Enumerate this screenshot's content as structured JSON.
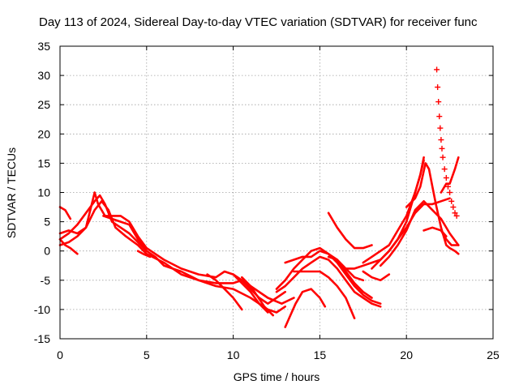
{
  "chart_data": {
    "type": "scatter",
    "title": "Day 113 of 2024, Sidereal Day-to-day VTEC variation (SDTVAR) for receiver func",
    "xlabel": "GPS time / hours",
    "ylabel": "SDTVAR / TECUs",
    "xlim": [
      0,
      25
    ],
    "ylim": [
      -15,
      35
    ],
    "xticks": [
      0,
      5,
      10,
      15,
      20,
      25
    ],
    "yticks": [
      -15,
      -10,
      -5,
      0,
      5,
      10,
      15,
      20,
      25,
      30,
      35
    ],
    "grid": true,
    "color": "#ff0000",
    "series": [
      {
        "name": "arc-1",
        "points": [
          [
            0,
            2
          ],
          [
            0.5,
            3
          ],
          [
            1,
            4.5
          ],
          [
            1.5,
            6.5
          ],
          [
            2,
            8.5
          ],
          [
            2.3,
            9.5
          ],
          [
            2.6,
            8
          ],
          [
            3,
            5
          ],
          [
            3.5,
            4
          ],
          [
            4,
            3
          ],
          [
            4.5,
            1.5
          ],
          [
            5,
            0
          ],
          [
            5.5,
            -1
          ],
          [
            6,
            -2.5
          ],
          [
            7,
            -3.5
          ],
          [
            8,
            -5
          ],
          [
            9,
            -5.5
          ],
          [
            10,
            -5.5
          ],
          [
            10.5,
            -5
          ],
          [
            11,
            -6.5
          ],
          [
            11.5,
            -8
          ],
          [
            12,
            -9
          ],
          [
            12.5,
            -8
          ],
          [
            13,
            -7
          ]
        ]
      },
      {
        "name": "arc-2",
        "points": [
          [
            0,
            1
          ],
          [
            0.5,
            1.5
          ],
          [
            1,
            2.5
          ],
          [
            1.5,
            4
          ],
          [
            2,
            7
          ],
          [
            2.4,
            8.5
          ],
          [
            2.8,
            7
          ],
          [
            3.2,
            4
          ],
          [
            3.8,
            2.5
          ],
          [
            4.5,
            1
          ],
          [
            5,
            -0.5
          ],
          [
            6,
            -2
          ],
          [
            7,
            -4
          ],
          [
            8,
            -5
          ],
          [
            9,
            -6
          ],
          [
            10,
            -6.5
          ],
          [
            11,
            -8
          ],
          [
            12,
            -10
          ],
          [
            12.5,
            -10.5
          ],
          [
            13,
            -9.5
          ]
        ]
      },
      {
        "name": "arc-3",
        "points": [
          [
            0,
            3
          ],
          [
            0.5,
            3.5
          ],
          [
            1,
            3
          ],
          [
            1.5,
            4
          ],
          [
            2,
            10
          ],
          [
            2.2,
            8
          ],
          [
            2.6,
            6
          ],
          [
            3,
            6
          ],
          [
            3.5,
            6
          ],
          [
            4,
            5
          ],
          [
            4.5,
            2.5
          ],
          [
            5,
            0.5
          ],
          [
            5.5,
            -0.5
          ],
          [
            6,
            -1.5
          ],
          [
            7,
            -3
          ],
          [
            8,
            -4
          ],
          [
            9,
            -4.5
          ],
          [
            9.5,
            -3.5
          ],
          [
            10,
            -4
          ],
          [
            11,
            -6
          ],
          [
            12,
            -8
          ],
          [
            12.8,
            -9
          ],
          [
            13.5,
            -8
          ]
        ]
      },
      {
        "name": "arc-4",
        "points": [
          [
            2.5,
            6
          ],
          [
            3,
            5.5
          ],
          [
            3.5,
            5
          ],
          [
            4,
            4.5
          ],
          [
            4.5,
            2
          ],
          [
            5,
            0
          ]
        ]
      },
      {
        "name": "arc-5",
        "points": [
          [
            0,
            7.5
          ],
          [
            0.3,
            7
          ],
          [
            0.6,
            5.5
          ]
        ]
      },
      {
        "name": "arc-6",
        "points": [
          [
            0,
            2
          ],
          [
            0.3,
            1
          ],
          [
            0.6,
            0.5
          ],
          [
            1,
            -0.5
          ]
        ]
      },
      {
        "name": "arc-7",
        "points": [
          [
            4.5,
            0
          ],
          [
            4.8,
            -0.5
          ],
          [
            5.2,
            -1
          ]
        ]
      },
      {
        "name": "arc-8",
        "points": [
          [
            8.5,
            -4
          ],
          [
            9,
            -5
          ],
          [
            9.5,
            -6.5
          ],
          [
            10,
            -8
          ],
          [
            10.5,
            -10
          ]
        ]
      },
      {
        "name": "arc-9",
        "points": [
          [
            10,
            -4
          ],
          [
            10.5,
            -5.5
          ],
          [
            11,
            -7
          ],
          [
            11.5,
            -9
          ],
          [
            12,
            -10.5
          ]
        ]
      },
      {
        "name": "arc-10",
        "points": [
          [
            10.5,
            -4.5
          ],
          [
            11,
            -6
          ],
          [
            11.8,
            -9.5
          ],
          [
            12.3,
            -11
          ]
        ]
      },
      {
        "name": "arc-11",
        "points": [
          [
            12.5,
            -7
          ],
          [
            13,
            -6
          ],
          [
            13.5,
            -4.5
          ],
          [
            14,
            -3
          ],
          [
            14.5,
            -2
          ],
          [
            15,
            -1
          ],
          [
            15.5,
            -1.5
          ],
          [
            16,
            -3
          ],
          [
            16.5,
            -5
          ],
          [
            17,
            -7
          ],
          [
            17.5,
            -8
          ],
          [
            18,
            -9
          ],
          [
            18.5,
            -9.5
          ]
        ]
      },
      {
        "name": "arc-12",
        "points": [
          [
            12.5,
            -6.5
          ],
          [
            13,
            -5
          ],
          [
            13.5,
            -3
          ],
          [
            14,
            -1.5
          ],
          [
            14.5,
            0
          ],
          [
            15,
            0.5
          ],
          [
            15.5,
            -0.5
          ],
          [
            16,
            -2
          ],
          [
            16.5,
            -4
          ],
          [
            17,
            -6
          ],
          [
            17.5,
            -7.5
          ],
          [
            18,
            -8.5
          ],
          [
            18.5,
            -9
          ]
        ]
      },
      {
        "name": "arc-13",
        "points": [
          [
            13,
            -13
          ],
          [
            13.3,
            -11
          ],
          [
            13.6,
            -9
          ],
          [
            14,
            -7
          ],
          [
            14.5,
            -6.5
          ],
          [
            15,
            -8
          ],
          [
            15.3,
            -9.5
          ]
        ]
      },
      {
        "name": "arc-14",
        "points": [
          [
            13,
            -2
          ],
          [
            13.5,
            -1.5
          ],
          [
            14,
            -1
          ],
          [
            14.5,
            -1
          ],
          [
            15,
            0
          ],
          [
            15.5,
            -0.5
          ],
          [
            16,
            -1.5
          ],
          [
            16.5,
            -3.5
          ],
          [
            17,
            -5.5
          ],
          [
            17.5,
            -7
          ],
          [
            18,
            -8
          ]
        ]
      },
      {
        "name": "arc-15",
        "points": [
          [
            13.5,
            -3.5
          ],
          [
            14,
            -3.5
          ],
          [
            14.5,
            -3.5
          ],
          [
            15,
            -3.5
          ],
          [
            15.5,
            -4.5
          ],
          [
            16,
            -6
          ],
          [
            16.5,
            -8
          ],
          [
            17,
            -11.5
          ]
        ]
      },
      {
        "name": "arc-16",
        "points": [
          [
            15.5,
            6.5
          ],
          [
            16,
            4
          ],
          [
            16.5,
            2
          ],
          [
            17,
            0.5
          ],
          [
            17.5,
            0.5
          ],
          [
            18,
            1
          ]
        ]
      },
      {
        "name": "arc-17",
        "points": [
          [
            15.5,
            -1
          ],
          [
            16,
            -1.5
          ],
          [
            16.5,
            -3
          ],
          [
            17,
            -4.5
          ],
          [
            17.5,
            -5
          ]
        ]
      },
      {
        "name": "arc-18",
        "points": [
          [
            16.5,
            -3
          ],
          [
            17,
            -3
          ],
          [
            17.5,
            -2.5
          ],
          [
            18,
            -2
          ],
          [
            18.5,
            -1.5
          ],
          [
            19,
            0
          ],
          [
            19.5,
            2
          ],
          [
            20,
            5
          ],
          [
            20.3,
            8
          ],
          [
            20.5,
            10
          ],
          [
            20.8,
            13
          ],
          [
            21,
            15.5
          ]
        ]
      },
      {
        "name": "arc-19",
        "points": [
          [
            17.5,
            -3.5
          ],
          [
            18,
            -4.5
          ],
          [
            18.5,
            -5
          ],
          [
            19,
            -4
          ]
        ]
      },
      {
        "name": "arc-20",
        "points": [
          [
            17.5,
            -2
          ],
          [
            18,
            -1
          ],
          [
            18.5,
            0
          ],
          [
            19,
            1
          ],
          [
            19.5,
            3.5
          ],
          [
            20,
            6
          ],
          [
            20.5,
            10
          ],
          [
            20.8,
            13
          ],
          [
            21,
            16
          ]
        ]
      },
      {
        "name": "arc-21",
        "points": [
          [
            18,
            -3
          ],
          [
            18.5,
            -1.5
          ],
          [
            19,
            0
          ],
          [
            19.5,
            2
          ],
          [
            20,
            4
          ],
          [
            20.5,
            6.5
          ],
          [
            21,
            8
          ],
          [
            21.5,
            8
          ],
          [
            22,
            8.5
          ],
          [
            22.5,
            9
          ]
        ]
      },
      {
        "name": "arc-22",
        "points": [
          [
            18.5,
            -2.5
          ],
          [
            19,
            -1
          ],
          [
            19.5,
            1
          ],
          [
            20,
            3.5
          ],
          [
            20.5,
            7
          ],
          [
            21,
            8.5
          ],
          [
            21.5,
            7
          ],
          [
            22,
            5.5
          ],
          [
            22.5,
            3
          ],
          [
            23,
            1
          ]
        ]
      },
      {
        "name": "arc-23",
        "points": [
          [
            20,
            7.5
          ],
          [
            20.5,
            9
          ],
          [
            20.8,
            11
          ],
          [
            21.1,
            15
          ],
          [
            21.3,
            14
          ],
          [
            21.5,
            11
          ],
          [
            21.7,
            8
          ],
          [
            22,
            4
          ],
          [
            22.3,
            1
          ],
          [
            22.5,
            0.5
          ],
          [
            22.8,
            0
          ],
          [
            23,
            -0.5
          ]
        ]
      },
      {
        "name": "arc-24",
        "points": [
          [
            21,
            3.5
          ],
          [
            21.5,
            4
          ],
          [
            22,
            3.5
          ],
          [
            22.3,
            2.5
          ]
        ]
      },
      {
        "name": "arc-25",
        "points": [
          [
            22,
            10
          ],
          [
            22.3,
            11.5
          ],
          [
            22.5,
            11.5
          ],
          [
            22.8,
            14
          ],
          [
            23,
            16
          ]
        ]
      },
      {
        "name": "arc-26",
        "points": [
          [
            22,
            3.5
          ],
          [
            22.3,
            2
          ],
          [
            22.6,
            1
          ],
          [
            23,
            1
          ]
        ]
      }
    ],
    "spike": {
      "name": "spike",
      "points": [
        [
          21.75,
          31
        ],
        [
          21.8,
          28
        ],
        [
          21.85,
          25.5
        ],
        [
          21.9,
          23
        ],
        [
          21.95,
          21
        ],
        [
          22.0,
          19
        ],
        [
          22.05,
          17.5
        ],
        [
          22.1,
          16
        ],
        [
          22.2,
          14
        ],
        [
          22.3,
          12.5
        ],
        [
          22.4,
          11
        ],
        [
          22.5,
          10
        ],
        [
          22.6,
          8.5
        ],
        [
          22.7,
          7.5
        ],
        [
          22.8,
          6.5
        ],
        [
          22.9,
          6
        ]
      ]
    }
  }
}
